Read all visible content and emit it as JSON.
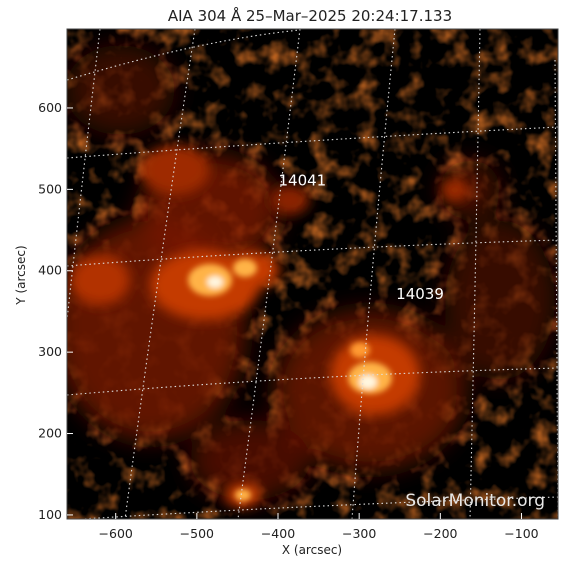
{
  "title": "AIA 304 Å 25–Mar–2025 20:24:17.133",
  "xlabel": "X (arcsec)",
  "ylabel": "Y (arcsec)",
  "watermark": "SolarMonitor.org",
  "x_ticks": [
    "−600",
    "−500",
    "−400",
    "−300",
    "−200",
    "−100"
  ],
  "y_ticks": [
    "600",
    "500",
    "400",
    "300",
    "200",
    "100"
  ],
  "regions": [
    {
      "label": "14041",
      "x": -370,
      "y": 505
    },
    {
      "label": "14039",
      "x": -225,
      "y": 365
    }
  ],
  "colors": {
    "background": "#000000",
    "plasma_dim": "#5a0d00",
    "plasma_mid": "#c43a06",
    "plasma_bright": "#ffb347",
    "plasma_core": "#fff7e0",
    "grid": "#dddddd"
  }
}
